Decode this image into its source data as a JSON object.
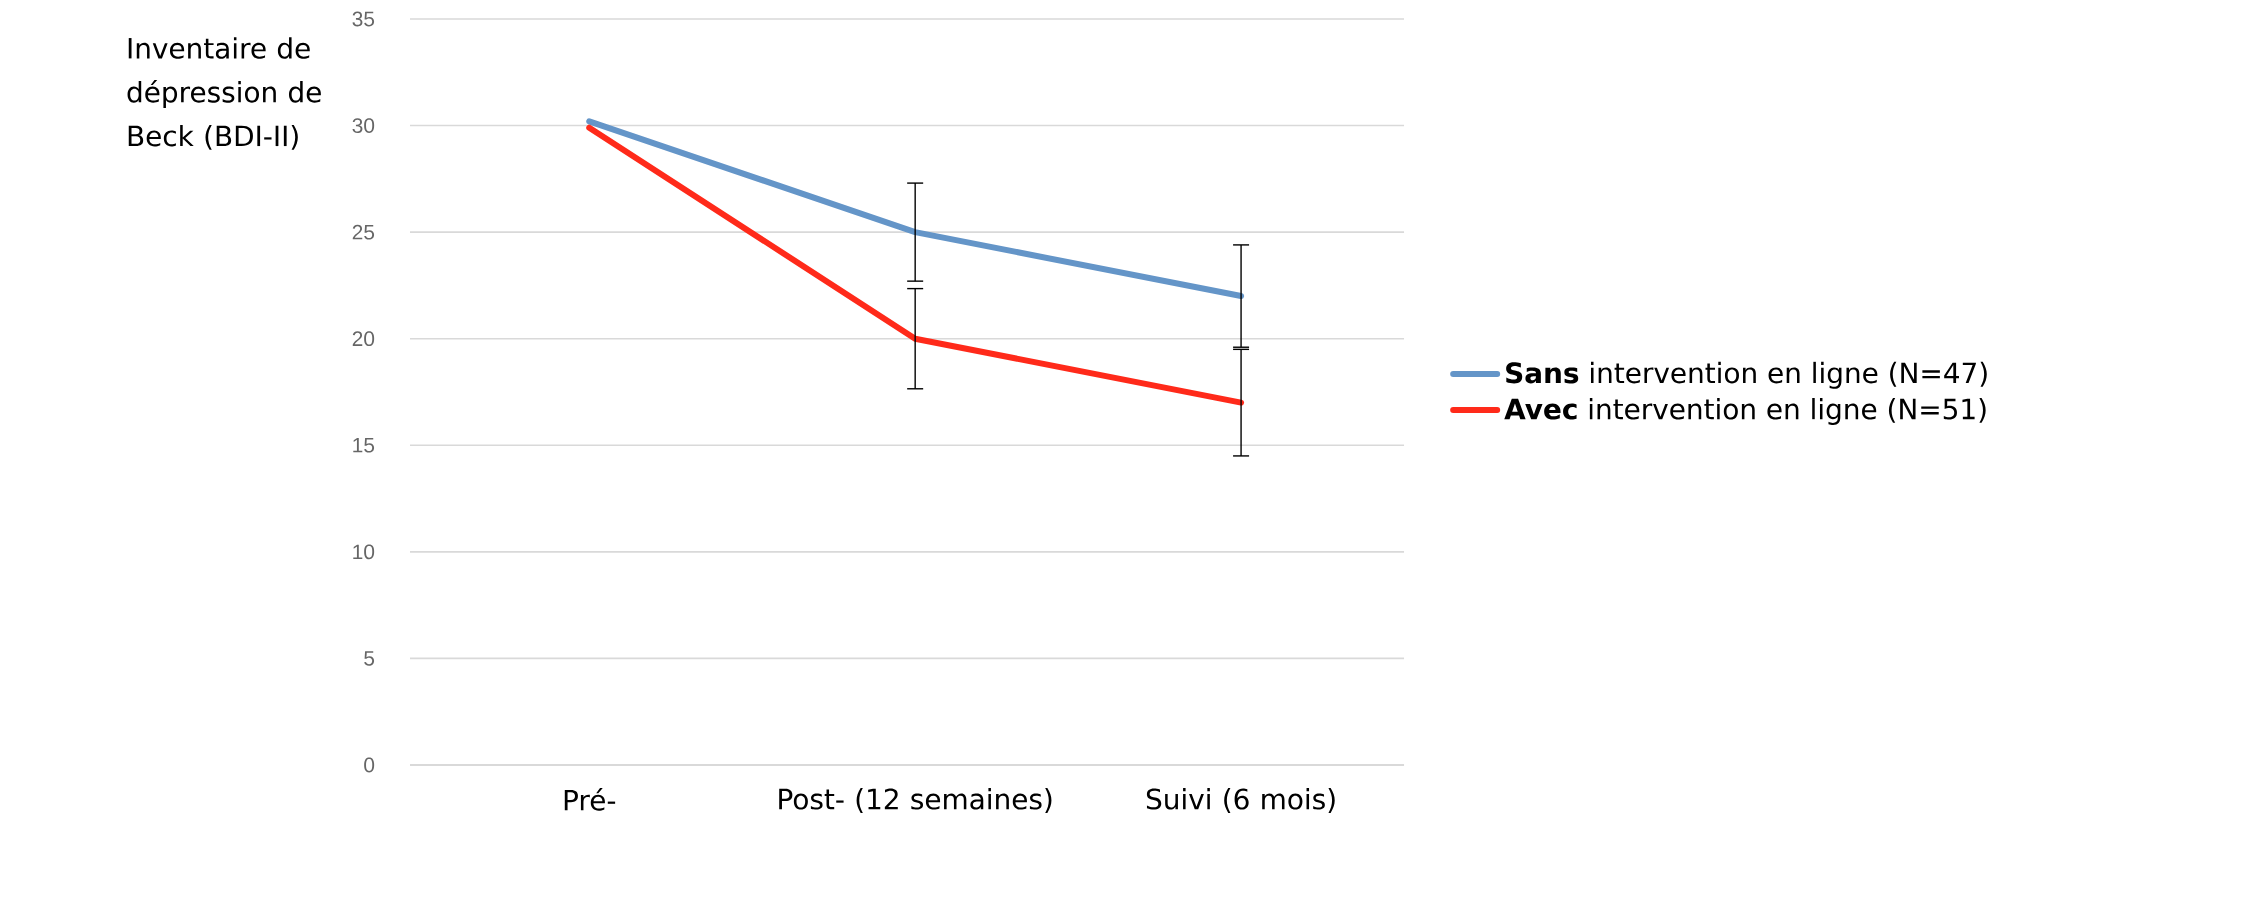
{
  "chart_data": {
    "type": "line",
    "ylabel": "Inventaire de dépression de Beck (BDI-II)",
    "categories": [
      "Pré-",
      "Post- (12 semaines)",
      "Suivi (6 mois)"
    ],
    "series": [
      {
        "name": "**Sans** intervention en ligne (N=47)",
        "color": "#6495c8",
        "values": [
          30.2,
          25,
          22
        ],
        "errors": [
          null,
          2.3,
          2.4
        ]
      },
      {
        "name": "**Avec** intervention en ligne (N=51)",
        "color": "#ff2a1a",
        "values": [
          29.9,
          20,
          17
        ],
        "errors": [
          null,
          2.35,
          2.5
        ]
      }
    ],
    "ylim": [
      0,
      35
    ],
    "yticks": [
      0,
      5,
      10,
      15,
      20,
      25,
      30,
      35
    ],
    "grid": "y",
    "legend": "right",
    "marker": "none",
    "line_style": "solid"
  }
}
